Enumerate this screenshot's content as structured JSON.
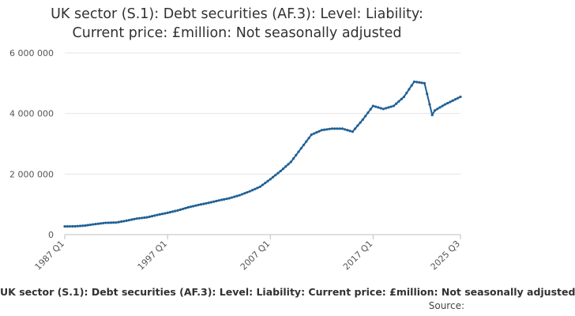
{
  "chart_data": {
    "type": "line",
    "title_lines": [
      "UK sector (S.1): Debt securities (AF.3): Level: Liability:",
      "Current price: £million: Not seasonally adjusted"
    ],
    "series": [
      {
        "name": "UK sector (S.1): Debt securities (AF.3): Level: Liability: Current price: £million: Not seasonally adjusted",
        "color": "#206095",
        "points": [
          [
            "1987 Q1",
            270000
          ],
          [
            "1988 Q1",
            275000
          ],
          [
            "1989 Q1",
            300000
          ],
          [
            "1990 Q1",
            350000
          ],
          [
            "1991 Q1",
            390000
          ],
          [
            "1992 Q1",
            400000
          ],
          [
            "1993 Q1",
            460000
          ],
          [
            "1994 Q1",
            530000
          ],
          [
            "1995 Q1",
            570000
          ],
          [
            "1996 Q1",
            650000
          ],
          [
            "1997 Q1",
            720000
          ],
          [
            "1998 Q1",
            800000
          ],
          [
            "1999 Q1",
            900000
          ],
          [
            "2000 Q1",
            980000
          ],
          [
            "2001 Q1",
            1050000
          ],
          [
            "2002 Q1",
            1130000
          ],
          [
            "2003 Q1",
            1200000
          ],
          [
            "2004 Q1",
            1300000
          ],
          [
            "2005 Q1",
            1430000
          ],
          [
            "2006 Q1",
            1580000
          ],
          [
            "2007 Q1",
            1830000
          ],
          [
            "2008 Q1",
            2100000
          ],
          [
            "2009 Q1",
            2400000
          ],
          [
            "2010 Q1",
            2850000
          ],
          [
            "2011 Q1",
            3300000
          ],
          [
            "2012 Q1",
            3450000
          ],
          [
            "2013 Q1",
            3500000
          ],
          [
            "2014 Q1",
            3500000
          ],
          [
            "2015 Q1",
            3400000
          ],
          [
            "2016 Q1",
            3800000
          ],
          [
            "2017 Q1",
            4250000
          ],
          [
            "2018 Q1",
            4150000
          ],
          [
            "2019 Q1",
            4250000
          ],
          [
            "2020 Q1",
            4550000
          ],
          [
            "2021 Q1",
            5050000
          ],
          [
            "2022 Q1",
            5000000
          ],
          [
            "2022 Q4",
            3950000
          ],
          [
            "2023 Q1",
            4100000
          ],
          [
            "2024 Q1",
            4300000
          ],
          [
            "2025 Q3",
            4550000
          ]
        ]
      }
    ],
    "x_tick_labels": [
      "1987 Q1",
      "1997 Q1",
      "2007 Q1",
      "2017 Q1",
      "2025 Q3"
    ],
    "y_tick_labels": [
      "0",
      "2 000 000",
      "4 000 000",
      "6 000 000"
    ],
    "ylim": [
      0,
      6000000
    ],
    "xlim": [
      "1987 Q1",
      "2025 Q3"
    ],
    "grid": "horizontal",
    "legend_position": "bottom",
    "source_label": "Source:"
  }
}
